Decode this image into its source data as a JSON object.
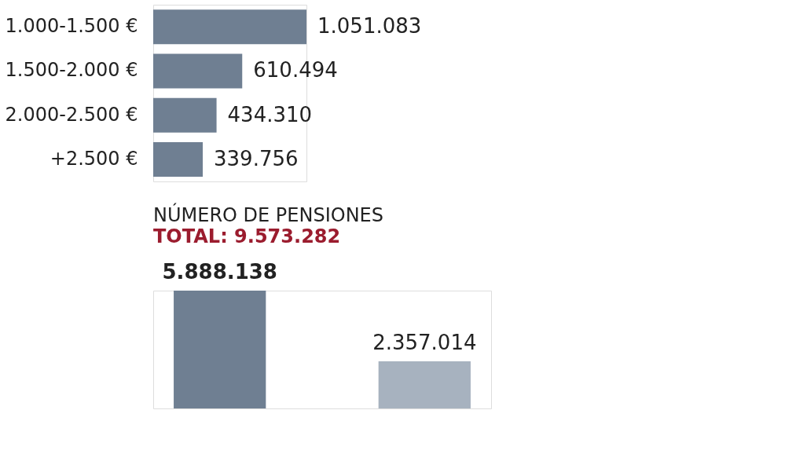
{
  "chart_data": [
    {
      "type": "bar",
      "orientation": "horizontal",
      "categories": [
        "1.000-1.500 €",
        "1.500-2.000 €",
        "2.000-2.500 €",
        "+2.500 €"
      ],
      "values": [
        1051083,
        610494,
        434310,
        339756
      ],
      "color": "#6f7f92",
      "data_labels": true,
      "value_labels": [
        "1.051.083",
        "610.494",
        "434.310",
        "339.756"
      ]
    },
    {
      "type": "bar",
      "title": "NÚMERO DE PENSIONES",
      "subtitle": "TOTAL: 9.573.282",
      "categories": [
        null,
        null
      ],
      "values": [
        5888138,
        2357014
      ],
      "colors": [
        "#6f7f92",
        "#a7b2bf"
      ],
      "data_labels": true,
      "value_labels": [
        "5.888.138",
        "2.357.014"
      ]
    }
  ]
}
